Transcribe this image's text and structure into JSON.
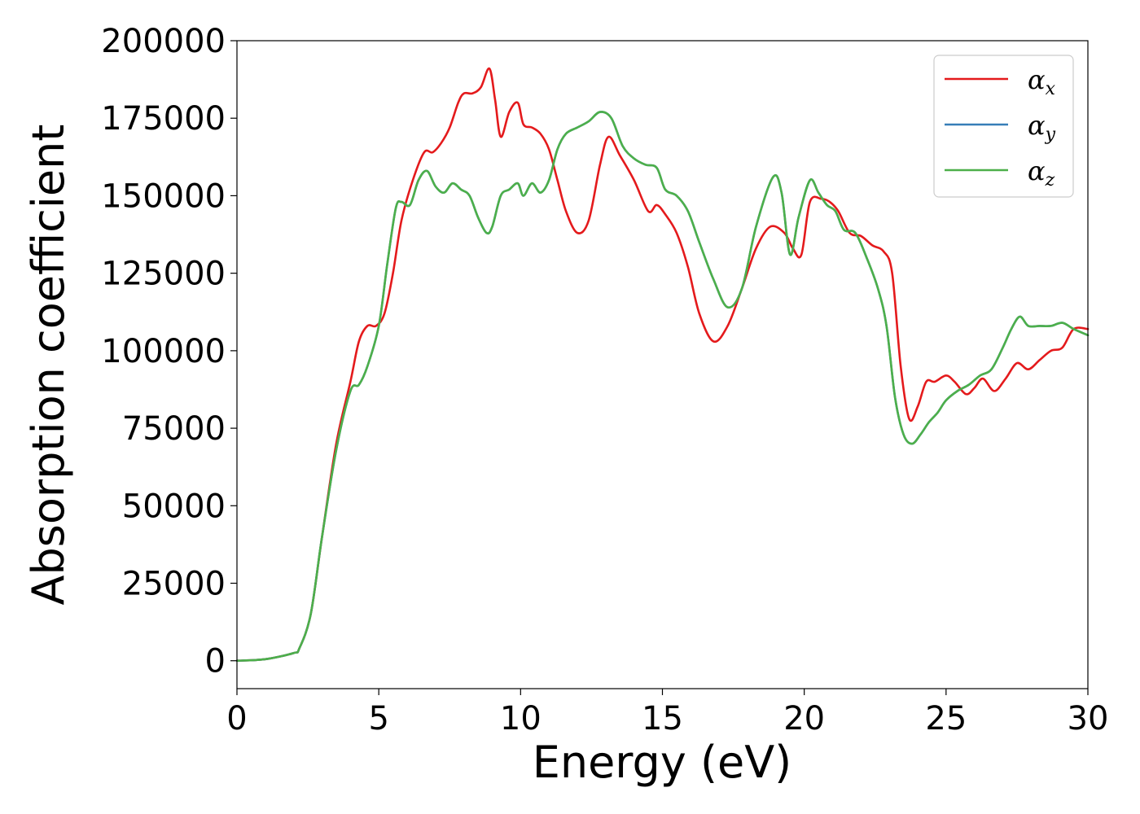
{
  "chart_data": {
    "type": "line",
    "title": "",
    "xlabel": "Energy (eV)",
    "ylabel": "Absorption coefficient",
    "xlim": [
      0,
      30
    ],
    "ylim": [
      -9000,
      200000
    ],
    "xticks": [
      0,
      5,
      10,
      15,
      20,
      25,
      30
    ],
    "xtick_labels": [
      "0",
      "5",
      "10",
      "15",
      "20",
      "25",
      "30"
    ],
    "yticks": [
      0,
      25000,
      50000,
      75000,
      100000,
      125000,
      150000,
      175000,
      200000
    ],
    "ytick_labels": [
      "0",
      "25000",
      "50000",
      "75000",
      "100000",
      "125000",
      "150000",
      "175000",
      "200000"
    ],
    "grid": false,
    "legend_position": "top-right",
    "series": [
      {
        "name": "α",
        "subscript": "x",
        "color": "#e41a1c",
        "x": [
          0,
          1,
          2,
          2.2,
          2.6,
          3,
          3.5,
          4,
          4.3,
          4.6,
          4.9,
          5.2,
          5.5,
          5.8,
          6.2,
          6.6,
          6.9,
          7.2,
          7.5,
          7.8,
          8.0,
          8.3,
          8.6,
          8.9,
          9.1,
          9.3,
          9.6,
          9.9,
          10.1,
          10.4,
          10.7,
          11.0,
          11.3,
          11.6,
          12.0,
          12.4,
          12.8,
          13.1,
          13.5,
          14.0,
          14.5,
          14.8,
          15.1,
          15.5,
          15.9,
          16.3,
          16.8,
          17.3,
          17.8,
          18.3,
          18.8,
          19.3,
          19.6,
          19.9,
          20.2,
          20.6,
          20.9,
          21.2,
          21.6,
          22.0,
          22.4,
          22.8,
          23.1,
          23.4,
          23.7,
          24.0,
          24.3,
          24.6,
          25.0,
          25.3,
          25.7,
          26.0,
          26.3,
          26.7,
          27.1,
          27.5,
          27.9,
          28.3,
          28.7,
          29.1,
          29.5,
          30.0
        ],
        "y": [
          0,
          500,
          2500,
          4000,
          15000,
          40000,
          70000,
          90000,
          103000,
          108000,
          108000,
          112000,
          125000,
          142000,
          155000,
          164000,
          164000,
          167000,
          172000,
          180000,
          183000,
          183000,
          185000,
          191000,
          181000,
          169000,
          177000,
          180000,
          173000,
          172000,
          170000,
          165000,
          155000,
          145000,
          138000,
          142000,
          160000,
          169000,
          163000,
          155000,
          145000,
          147000,
          144000,
          138000,
          127000,
          112000,
          103000,
          108000,
          120000,
          133000,
          140000,
          138000,
          133000,
          131000,
          148000,
          149000,
          148000,
          145000,
          138000,
          137000,
          134000,
          132000,
          125000,
          95000,
          78000,
          82000,
          90000,
          90000,
          92000,
          90000,
          86000,
          88000,
          91000,
          87000,
          91000,
          96000,
          94000,
          97000,
          100000,
          101000,
          107000,
          107000
        ]
      },
      {
        "name": "α",
        "subscript": "y",
        "color": "#377eb8",
        "x": [
          0,
          1,
          2,
          2.2,
          2.6,
          3,
          3.5,
          4,
          4.3,
          4.6,
          5.0,
          5.3,
          5.6,
          5.8,
          6.1,
          6.4,
          6.7,
          7.0,
          7.3,
          7.6,
          7.9,
          8.2,
          8.5,
          8.8,
          9.0,
          9.3,
          9.6,
          9.9,
          10.1,
          10.4,
          10.7,
          11.0,
          11.3,
          11.6,
          12.0,
          12.4,
          12.8,
          13.2,
          13.6,
          14.0,
          14.4,
          14.8,
          15.1,
          15.5,
          15.9,
          16.3,
          16.8,
          17.3,
          17.8,
          18.3,
          18.9,
          19.2,
          19.5,
          19.8,
          20.2,
          20.5,
          20.8,
          21.1,
          21.4,
          21.8,
          22.2,
          22.6,
          22.9,
          23.2,
          23.5,
          23.8,
          24.1,
          24.4,
          24.7,
          25.0,
          25.4,
          25.8,
          26.2,
          26.6,
          27.0,
          27.3,
          27.6,
          27.9,
          28.3,
          28.7,
          29.1,
          29.5,
          30.0
        ],
        "y": [
          0,
          500,
          2500,
          4000,
          15000,
          40000,
          68000,
          87000,
          89000,
          95000,
          108000,
          128000,
          146000,
          148000,
          147000,
          155000,
          158000,
          153000,
          151000,
          154000,
          152000,
          150000,
          143000,
          138000,
          140000,
          150000,
          152000,
          154000,
          150000,
          154000,
          151000,
          155000,
          165000,
          170000,
          172000,
          174000,
          177000,
          175000,
          166000,
          162000,
          160000,
          159000,
          152000,
          150000,
          145000,
          135000,
          123000,
          114000,
          120000,
          140000,
          156000,
          151000,
          131000,
          143000,
          155000,
          151000,
          147000,
          145000,
          139000,
          138000,
          130000,
          120000,
          108000,
          85000,
          73000,
          70000,
          73000,
          77000,
          80000,
          84000,
          87000,
          89000,
          92000,
          94000,
          101000,
          107000,
          111000,
          108000,
          108000,
          108000,
          109000,
          107000,
          105000
        ]
      },
      {
        "name": "α",
        "subscript": "z",
        "color": "#4daf4a",
        "x": [
          0,
          1,
          2,
          2.2,
          2.6,
          3,
          3.5,
          4,
          4.3,
          4.6,
          5.0,
          5.3,
          5.6,
          5.8,
          6.1,
          6.4,
          6.7,
          7.0,
          7.3,
          7.6,
          7.9,
          8.2,
          8.5,
          8.8,
          9.0,
          9.3,
          9.6,
          9.9,
          10.1,
          10.4,
          10.7,
          11.0,
          11.3,
          11.6,
          12.0,
          12.4,
          12.8,
          13.2,
          13.6,
          14.0,
          14.4,
          14.8,
          15.1,
          15.5,
          15.9,
          16.3,
          16.8,
          17.3,
          17.8,
          18.3,
          18.9,
          19.2,
          19.5,
          19.8,
          20.2,
          20.5,
          20.8,
          21.1,
          21.4,
          21.8,
          22.2,
          22.6,
          22.9,
          23.2,
          23.5,
          23.8,
          24.1,
          24.4,
          24.7,
          25.0,
          25.4,
          25.8,
          26.2,
          26.6,
          27.0,
          27.3,
          27.6,
          27.9,
          28.3,
          28.7,
          29.1,
          29.5,
          30.0
        ],
        "y": [
          0,
          500,
          2500,
          4000,
          15000,
          40000,
          68000,
          87000,
          89000,
          95000,
          108000,
          128000,
          146000,
          148000,
          147000,
          155000,
          158000,
          153000,
          151000,
          154000,
          152000,
          150000,
          143000,
          138000,
          140000,
          150000,
          152000,
          154000,
          150000,
          154000,
          151000,
          155000,
          165000,
          170000,
          172000,
          174000,
          177000,
          175000,
          166000,
          162000,
          160000,
          159000,
          152000,
          150000,
          145000,
          135000,
          123000,
          114000,
          120000,
          140000,
          156000,
          151000,
          131000,
          143000,
          155000,
          151000,
          147000,
          145000,
          139000,
          138000,
          130000,
          120000,
          108000,
          85000,
          73000,
          70000,
          73000,
          77000,
          80000,
          84000,
          87000,
          89000,
          92000,
          94000,
          101000,
          107000,
          111000,
          108000,
          108000,
          108000,
          109000,
          107000,
          105000
        ]
      }
    ]
  }
}
